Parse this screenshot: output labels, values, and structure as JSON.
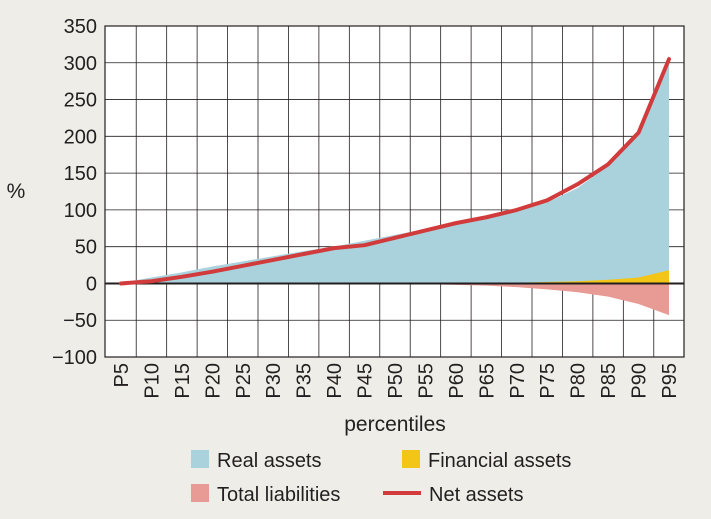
{
  "chart_data": {
    "type": "area",
    "categories": [
      "P5",
      "P10",
      "P15",
      "P20",
      "P25",
      "P30",
      "P35",
      "P40",
      "P45",
      "P50",
      "P55",
      "P60",
      "P65",
      "P70",
      "P75",
      "P80",
      "P85",
      "P90",
      "P95"
    ],
    "ylabel": "%",
    "xlabel": "percentiles",
    "ylim": [
      -100,
      350
    ],
    "yticks": [
      350,
      300,
      250,
      200,
      150,
      100,
      50,
      0,
      -50,
      -100
    ],
    "ytick_labels": [
      "350",
      "300",
      "250",
      "200",
      "150",
      "100",
      "50",
      "0",
      "−50",
      "−100"
    ],
    "grid": true,
    "legend_position": "bottom",
    "series": [
      {
        "name": "Real assets",
        "type": "area",
        "color": "#a9d2dc",
        "values": [
          1,
          8,
          15,
          23,
          30,
          37,
          44,
          50,
          58,
          66,
          74,
          82,
          90,
          98,
          110,
          130,
          160,
          205,
          310
        ]
      },
      {
        "name": "Financial assets",
        "type": "area",
        "color": "#f2c517",
        "values": [
          0,
          0,
          0,
          0,
          0,
          0,
          0,
          0,
          0,
          0,
          0,
          0,
          0.5,
          1,
          2,
          3,
          5,
          8,
          18
        ]
      },
      {
        "name": "Total liabilities",
        "type": "area",
        "color": "#e89a94",
        "values": [
          0,
          0,
          0,
          0,
          0,
          0,
          0,
          0,
          0,
          0,
          -1,
          -2,
          -3,
          -5,
          -8,
          -12,
          -18,
          -28,
          -43
        ]
      },
      {
        "name": "Net assets",
        "type": "line",
        "color": "#d13b3c",
        "values": [
          0,
          3,
          9,
          16,
          24,
          32,
          40,
          48,
          52,
          62,
          72,
          82,
          90,
          100,
          113,
          135,
          162,
          205,
          305
        ]
      }
    ]
  }
}
